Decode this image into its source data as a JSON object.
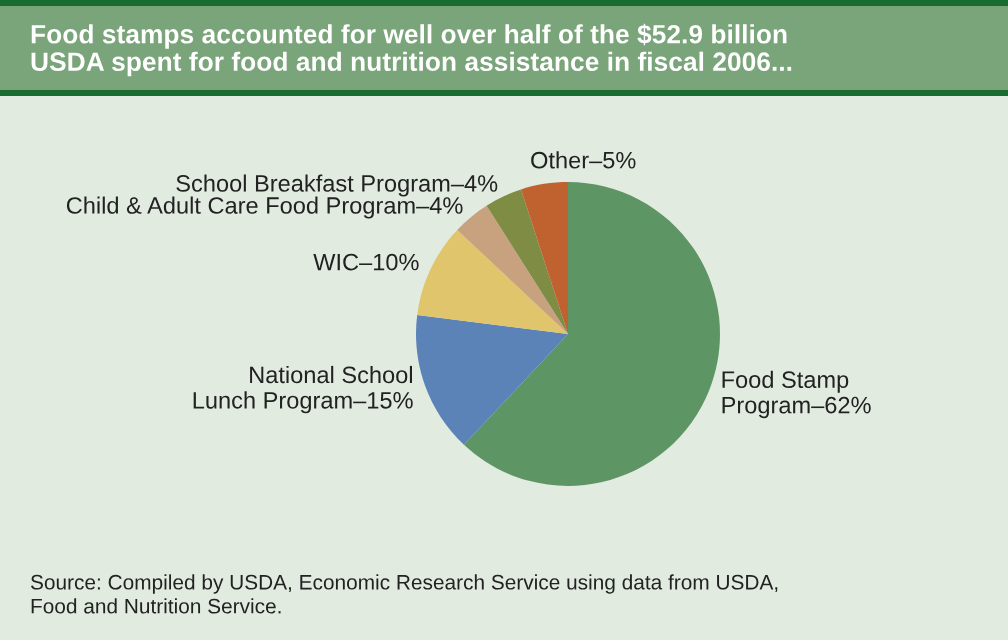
{
  "chart_data": {
    "type": "pie",
    "title": "Food stamps accounted for well over half of the $52.9 billion\nUSDA spent for food and nutrition assistance in fiscal 2006...",
    "categories": [
      "Food Stamp\nProgram–",
      "National School\nLunch Program–",
      "WIC–",
      "Child & Adult Care Food Program–",
      "School Breakfast Program–",
      "Other–"
    ],
    "values": [
      62,
      15,
      10,
      4,
      4,
      5
    ],
    "value_labels": [
      "62%",
      "15%",
      "10%",
      "4%",
      "4%",
      "5%"
    ],
    "colors": [
      "#5e9565",
      "#5b83b8",
      "#e0c56c",
      "#c8a27e",
      "#7e8c44",
      "#c0622f"
    ],
    "annotations": [
      "Source: Compiled by USDA, Economic Research Service using data from USDA,\nFood and Nutrition Service."
    ]
  }
}
